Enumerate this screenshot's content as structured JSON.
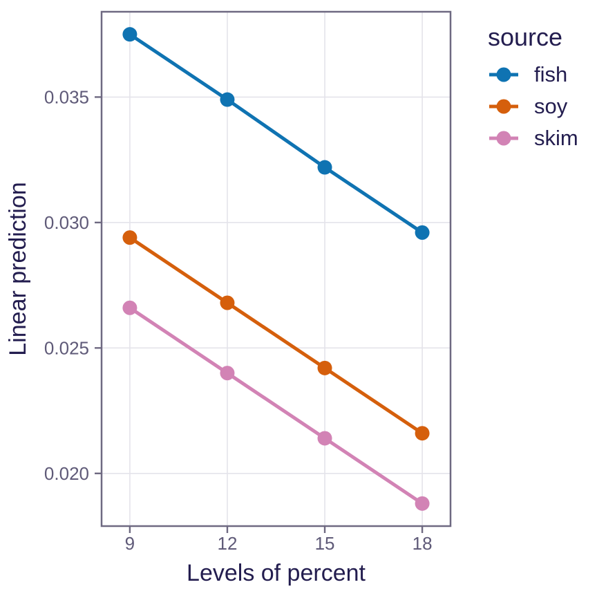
{
  "figure": {
    "background_color": "#ffffff",
    "panel_border_color": "#6e6981",
    "grid_color": "#e4e3ea",
    "tick_color": "#6e6981",
    "axis_title_color": "#231d4f",
    "tick_label_color": "#5f5a78",
    "legend_text_color": "#231d4f"
  },
  "chart_data": {
    "type": "line",
    "title": "",
    "xlabel": "Levels of percent",
    "ylabel": "Linear prediction",
    "legend_title": "source",
    "legend_position": "right-top",
    "grid": true,
    "marker": "circle",
    "x": [
      9,
      12,
      15,
      18
    ],
    "series": [
      {
        "name": "fish",
        "color": "#0f73b2",
        "values": [
          0.0375,
          0.0349,
          0.0322,
          0.0296
        ]
      },
      {
        "name": "soy",
        "color": "#d55f0c",
        "values": [
          0.0294,
          0.0268,
          0.0242,
          0.0216
        ]
      },
      {
        "name": "skim",
        "color": "#d283b5",
        "values": [
          0.0266,
          0.024,
          0.0214,
          0.0188
        ]
      }
    ],
    "xtick_values": [
      9,
      12,
      15,
      18
    ],
    "xtick_labels": [
      "9",
      "12",
      "15",
      "18"
    ],
    "ytick_values": [
      0.02,
      0.025,
      0.03,
      0.035
    ],
    "ytick_labels": [
      "0.020",
      "0.025",
      "0.030",
      "0.035"
    ],
    "xlim": [
      8.13,
      18.87
    ],
    "ylim": [
      0.0179,
      0.0384
    ]
  }
}
